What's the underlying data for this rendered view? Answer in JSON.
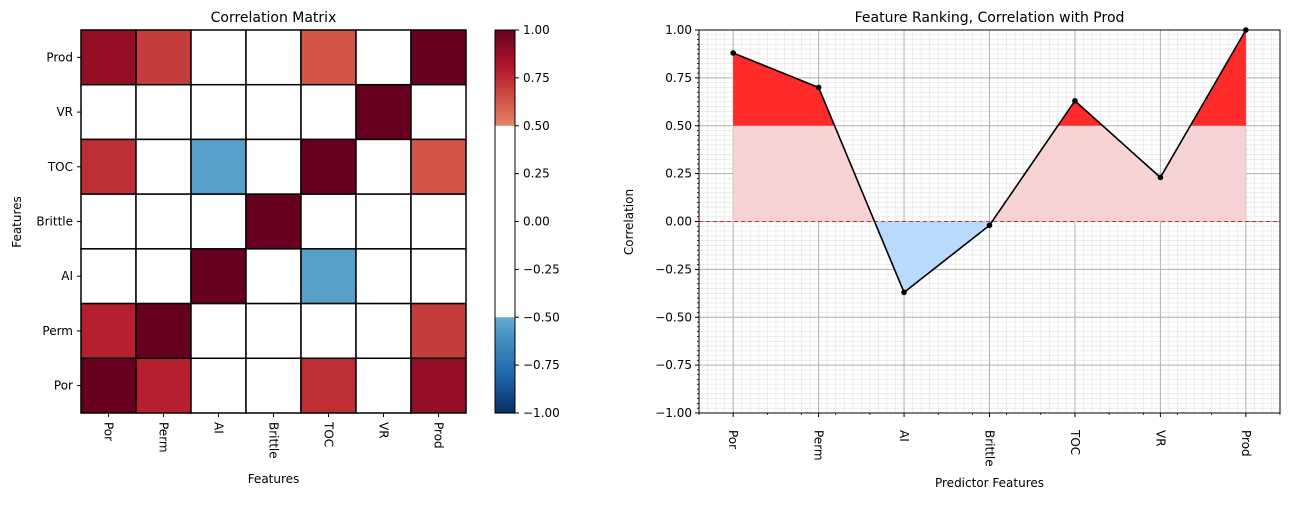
{
  "chart_data": [
    {
      "type": "heatmap",
      "title": "Correlation Matrix",
      "xlabel": "Features",
      "ylabel": "Features",
      "x_categories": [
        "Por",
        "Perm",
        "AI",
        "Brittle",
        "TOC",
        "VR",
        "Prod"
      ],
      "y_categories": [
        "Prod",
        "VR",
        "TOC",
        "Brittle",
        "AI",
        "Perm",
        "Por"
      ],
      "values": [
        [
          0.88,
          0.7,
          0.0,
          0.0,
          0.63,
          0.0,
          1.0
        ],
        [
          0.0,
          0.0,
          0.0,
          0.0,
          0.0,
          1.0,
          0.0
        ],
        [
          0.74,
          0.0,
          -0.55,
          0.0,
          1.0,
          0.0,
          0.63
        ],
        [
          0.0,
          0.0,
          0.0,
          1.0,
          0.0,
          0.0,
          0.0
        ],
        [
          0.0,
          0.0,
          1.0,
          0.0,
          -0.55,
          0.0,
          0.0
        ],
        [
          0.78,
          1.0,
          0.0,
          0.0,
          0.0,
          0.0,
          0.7
        ],
        [
          1.0,
          0.78,
          0.0,
          0.0,
          0.74,
          0.0,
          0.88
        ]
      ],
      "colorbar": {
        "range": [
          -1.0,
          1.0
        ],
        "ticks": [
          "1.00",
          "0.75",
          "0.50",
          "0.25",
          "0.00",
          "−0.25",
          "−0.50",
          "−0.75",
          "−1.00"
        ],
        "tick_values": [
          1.0,
          0.75,
          0.5,
          0.25,
          0.0,
          -0.25,
          -0.5,
          -0.75,
          -1.0
        ],
        "masked_between": [
          -0.5,
          0.5
        ]
      },
      "colormap": "RdBu_r",
      "grid": true
    },
    {
      "type": "line",
      "title": "Feature Ranking, Correlation with Prod",
      "xlabel": "Predictor Features",
      "ylabel": "Correlation",
      "categories": [
        "Por",
        "Perm",
        "AI",
        "Brittle",
        "TOC",
        "VR",
        "Prod"
      ],
      "values": [
        0.88,
        0.7,
        -0.37,
        -0.02,
        0.63,
        0.23,
        1.0
      ],
      "ylim": [
        -1.0,
        1.0
      ],
      "yticks": [
        "1.00",
        "0.75",
        "0.50",
        "0.25",
        "0.00",
        "−0.25",
        "−0.50",
        "−0.75",
        "−1.00"
      ],
      "ytick_values": [
        1.0,
        0.75,
        0.5,
        0.25,
        0.0,
        -0.25,
        -0.5,
        -0.75,
        -1.0
      ],
      "reference_line": 0.0,
      "threshold": 0.5,
      "grid": true,
      "colors": {
        "line": "#000000",
        "above_threshold": "#ff2a2a",
        "positive_fill": "#f7d3d3",
        "negative_fill": "#b9dafc",
        "zero_line": "#e3242b"
      }
    }
  ]
}
